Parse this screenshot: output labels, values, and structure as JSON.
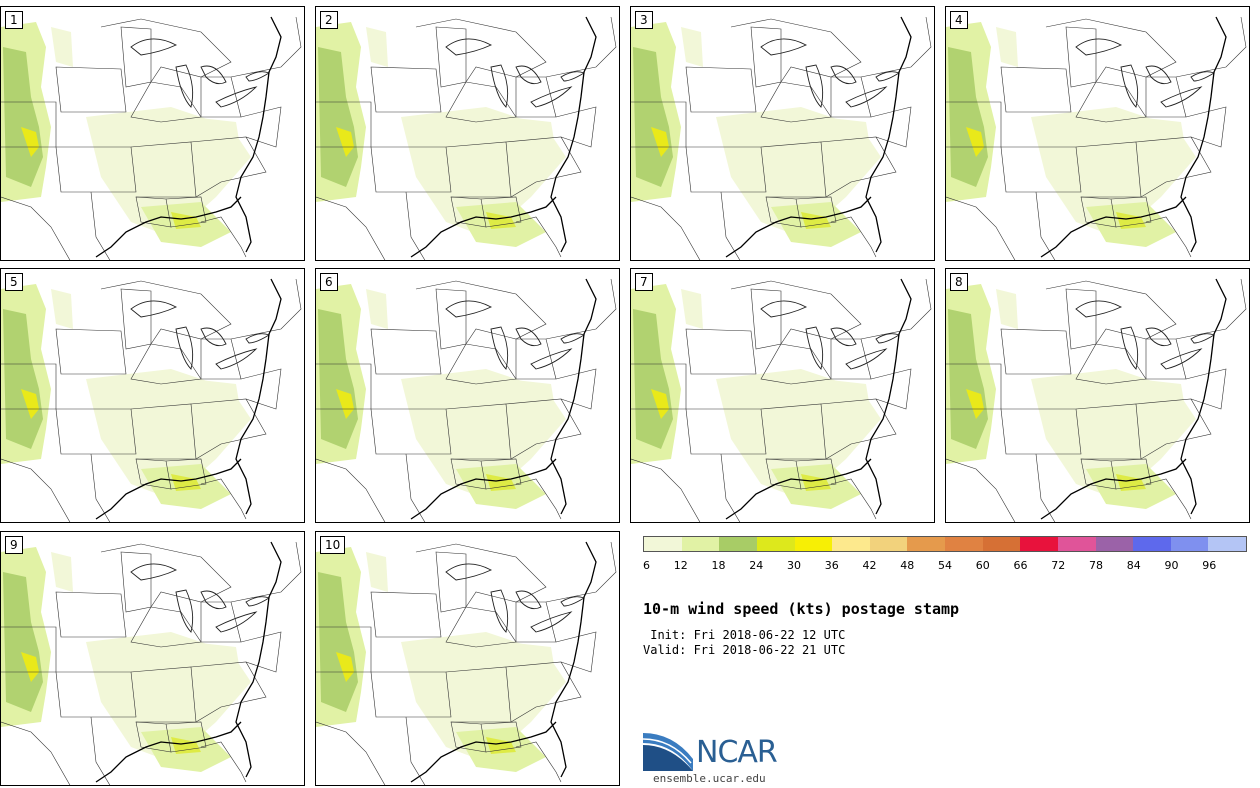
{
  "panels": [
    {
      "label": "1"
    },
    {
      "label": "2"
    },
    {
      "label": "3"
    },
    {
      "label": "4"
    },
    {
      "label": "5"
    },
    {
      "label": "6"
    },
    {
      "label": "7"
    },
    {
      "label": "8"
    },
    {
      "label": "9"
    },
    {
      "label": "10"
    }
  ],
  "colorbar": {
    "colors": [
      "#f2f7d8",
      "#e1f2a5",
      "#a8cc66",
      "#dde81c",
      "#f7ef05",
      "#fde98d",
      "#f2d27c",
      "#e59a4c",
      "#e08242",
      "#d67035",
      "#e8123c",
      "#e05499",
      "#9b62a8",
      "#5e69ec",
      "#7f90ef",
      "#b4c5f5"
    ],
    "ticks": [
      "6",
      "12",
      "18",
      "24",
      "30",
      "36",
      "42",
      "48",
      "54",
      "60",
      "66",
      "72",
      "78",
      "84",
      "90",
      "96"
    ]
  },
  "title": "10-m wind speed (kts) postage stamp",
  "init_line": " Init: Fri 2018-06-22 12 UTC",
  "valid_line": "Valid: Fri 2018-06-22 21 UTC",
  "logo": {
    "text": "NCAR",
    "url": "ensemble.ucar.edu"
  }
}
